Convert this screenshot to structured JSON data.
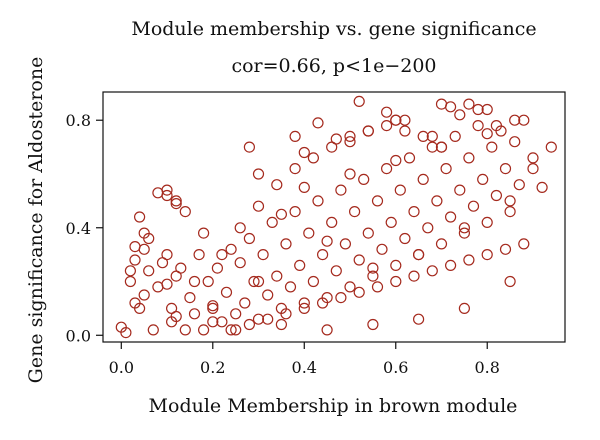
{
  "chart_data": {
    "type": "scatter",
    "title": "Module membership vs. gene significance",
    "subtitle": "cor=0.66, p<1e−200",
    "xlabel": "Module Membership in brown module",
    "ylabel": "Gene significance for Aldosterone",
    "xlim": [
      -0.04,
      0.97
    ],
    "ylim": [
      -0.025,
      0.905
    ],
    "xticks": [
      0.0,
      0.2,
      0.4,
      0.6,
      0.8
    ],
    "xtick_labels": [
      "0.0",
      "0.2",
      "0.4",
      "0.6",
      "0.8"
    ],
    "yticks": [
      0.0,
      0.4,
      0.8
    ],
    "ytick_labels": [
      "0.0",
      "0.4",
      "0.8"
    ],
    "grid": false,
    "legend": "none",
    "marker": "open-circle",
    "marker_color": "#a52a1e",
    "series": [
      {
        "x": [
          0.0,
          0.01,
          0.02,
          0.03,
          0.04,
          0.05,
          0.06,
          0.07,
          0.08,
          0.1,
          0.11,
          0.12,
          0.13,
          0.14,
          0.04,
          0.05,
          0.02,
          0.03,
          0.06,
          0.09,
          0.1,
          0.11,
          0.12,
          0.15,
          0.16,
          0.17,
          0.18,
          0.19,
          0.2,
          0.21,
          0.22,
          0.23,
          0.24,
          0.25,
          0.26,
          0.27,
          0.28,
          0.29,
          0.3,
          0.31,
          0.32,
          0.33,
          0.34,
          0.35,
          0.36,
          0.37,
          0.38,
          0.39,
          0.4,
          0.41,
          0.42,
          0.43,
          0.44,
          0.45,
          0.46,
          0.47,
          0.48,
          0.49,
          0.5,
          0.51,
          0.52,
          0.53,
          0.54,
          0.55,
          0.56,
          0.57,
          0.58,
          0.59,
          0.6,
          0.61,
          0.62,
          0.63,
          0.64,
          0.65,
          0.66,
          0.67,
          0.68,
          0.69,
          0.7,
          0.71,
          0.72,
          0.73,
          0.74,
          0.75,
          0.76,
          0.77,
          0.78,
          0.79,
          0.8,
          0.81,
          0.82,
          0.83,
          0.84,
          0.85,
          0.86,
          0.87,
          0.88,
          0.9,
          0.92,
          0.94,
          0.1,
          0.12,
          0.14,
          0.16,
          0.18,
          0.2,
          0.22,
          0.24,
          0.26,
          0.28,
          0.3,
          0.32,
          0.34,
          0.36,
          0.38,
          0.4,
          0.42,
          0.44,
          0.46,
          0.48,
          0.5,
          0.52,
          0.54,
          0.56,
          0.58,
          0.6,
          0.62,
          0.64,
          0.66,
          0.68,
          0.7,
          0.72,
          0.74,
          0.76,
          0.78,
          0.8,
          0.82,
          0.84,
          0.86,
          0.88,
          0.2,
          0.25,
          0.3,
          0.35,
          0.4,
          0.45,
          0.5,
          0.55,
          0.6,
          0.65,
          0.7,
          0.75,
          0.8,
          0.85,
          0.3,
          0.35,
          0.4,
          0.45,
          0.5,
          0.55,
          0.6,
          0.65,
          0.7,
          0.75,
          0.8,
          0.85,
          0.9,
          0.52,
          0.58,
          0.6,
          0.62,
          0.68,
          0.72,
          0.76,
          0.28,
          0.38,
          0.43,
          0.47,
          0.54,
          0.1,
          0.12,
          0.08,
          0.05,
          0.03
        ],
        "y": [
          0.03,
          0.01,
          0.2,
          0.28,
          0.1,
          0.15,
          0.24,
          0.02,
          0.18,
          0.3,
          0.1,
          0.07,
          0.25,
          0.02,
          0.44,
          0.32,
          0.24,
          0.12,
          0.36,
          0.27,
          0.19,
          0.05,
          0.22,
          0.14,
          0.08,
          0.3,
          0.02,
          0.2,
          0.11,
          0.25,
          0.05,
          0.16,
          0.32,
          0.08,
          0.27,
          0.12,
          0.36,
          0.2,
          0.06,
          0.3,
          0.15,
          0.42,
          0.22,
          0.1,
          0.34,
          0.18,
          0.46,
          0.26,
          0.12,
          0.38,
          0.2,
          0.5,
          0.3,
          0.14,
          0.42,
          0.24,
          0.54,
          0.34,
          0.18,
          0.46,
          0.28,
          0.58,
          0.38,
          0.22,
          0.5,
          0.32,
          0.62,
          0.42,
          0.26,
          0.54,
          0.36,
          0.66,
          0.46,
          0.3,
          0.58,
          0.4,
          0.7,
          0.5,
          0.34,
          0.62,
          0.44,
          0.74,
          0.54,
          0.38,
          0.66,
          0.48,
          0.78,
          0.58,
          0.42,
          0.7,
          0.52,
          0.76,
          0.62,
          0.46,
          0.72,
          0.56,
          0.8,
          0.66,
          0.55,
          0.7,
          0.54,
          0.5,
          0.46,
          0.2,
          0.38,
          0.05,
          0.3,
          0.02,
          0.4,
          0.04,
          0.48,
          0.06,
          0.56,
          0.08,
          0.62,
          0.1,
          0.66,
          0.12,
          0.7,
          0.14,
          0.74,
          0.16,
          0.76,
          0.18,
          0.78,
          0.2,
          0.8,
          0.22,
          0.74,
          0.24,
          0.7,
          0.26,
          0.82,
          0.28,
          0.84,
          0.3,
          0.78,
          0.32,
          0.8,
          0.34,
          0.1,
          0.02,
          0.6,
          0.04,
          0.68,
          0.02,
          0.72,
          0.04,
          0.8,
          0.06,
          0.86,
          0.1,
          0.84,
          0.2,
          0.2,
          0.45,
          0.55,
          0.35,
          0.6,
          0.25,
          0.65,
          0.3,
          0.7,
          0.4,
          0.75,
          0.5,
          0.62,
          0.87,
          0.83,
          0.8,
          0.76,
          0.74,
          0.85,
          0.86,
          0.7,
          0.74,
          0.79,
          0.73,
          0.76,
          0.52,
          0.49,
          0.53,
          0.38,
          0.33
        ]
      }
    ]
  }
}
